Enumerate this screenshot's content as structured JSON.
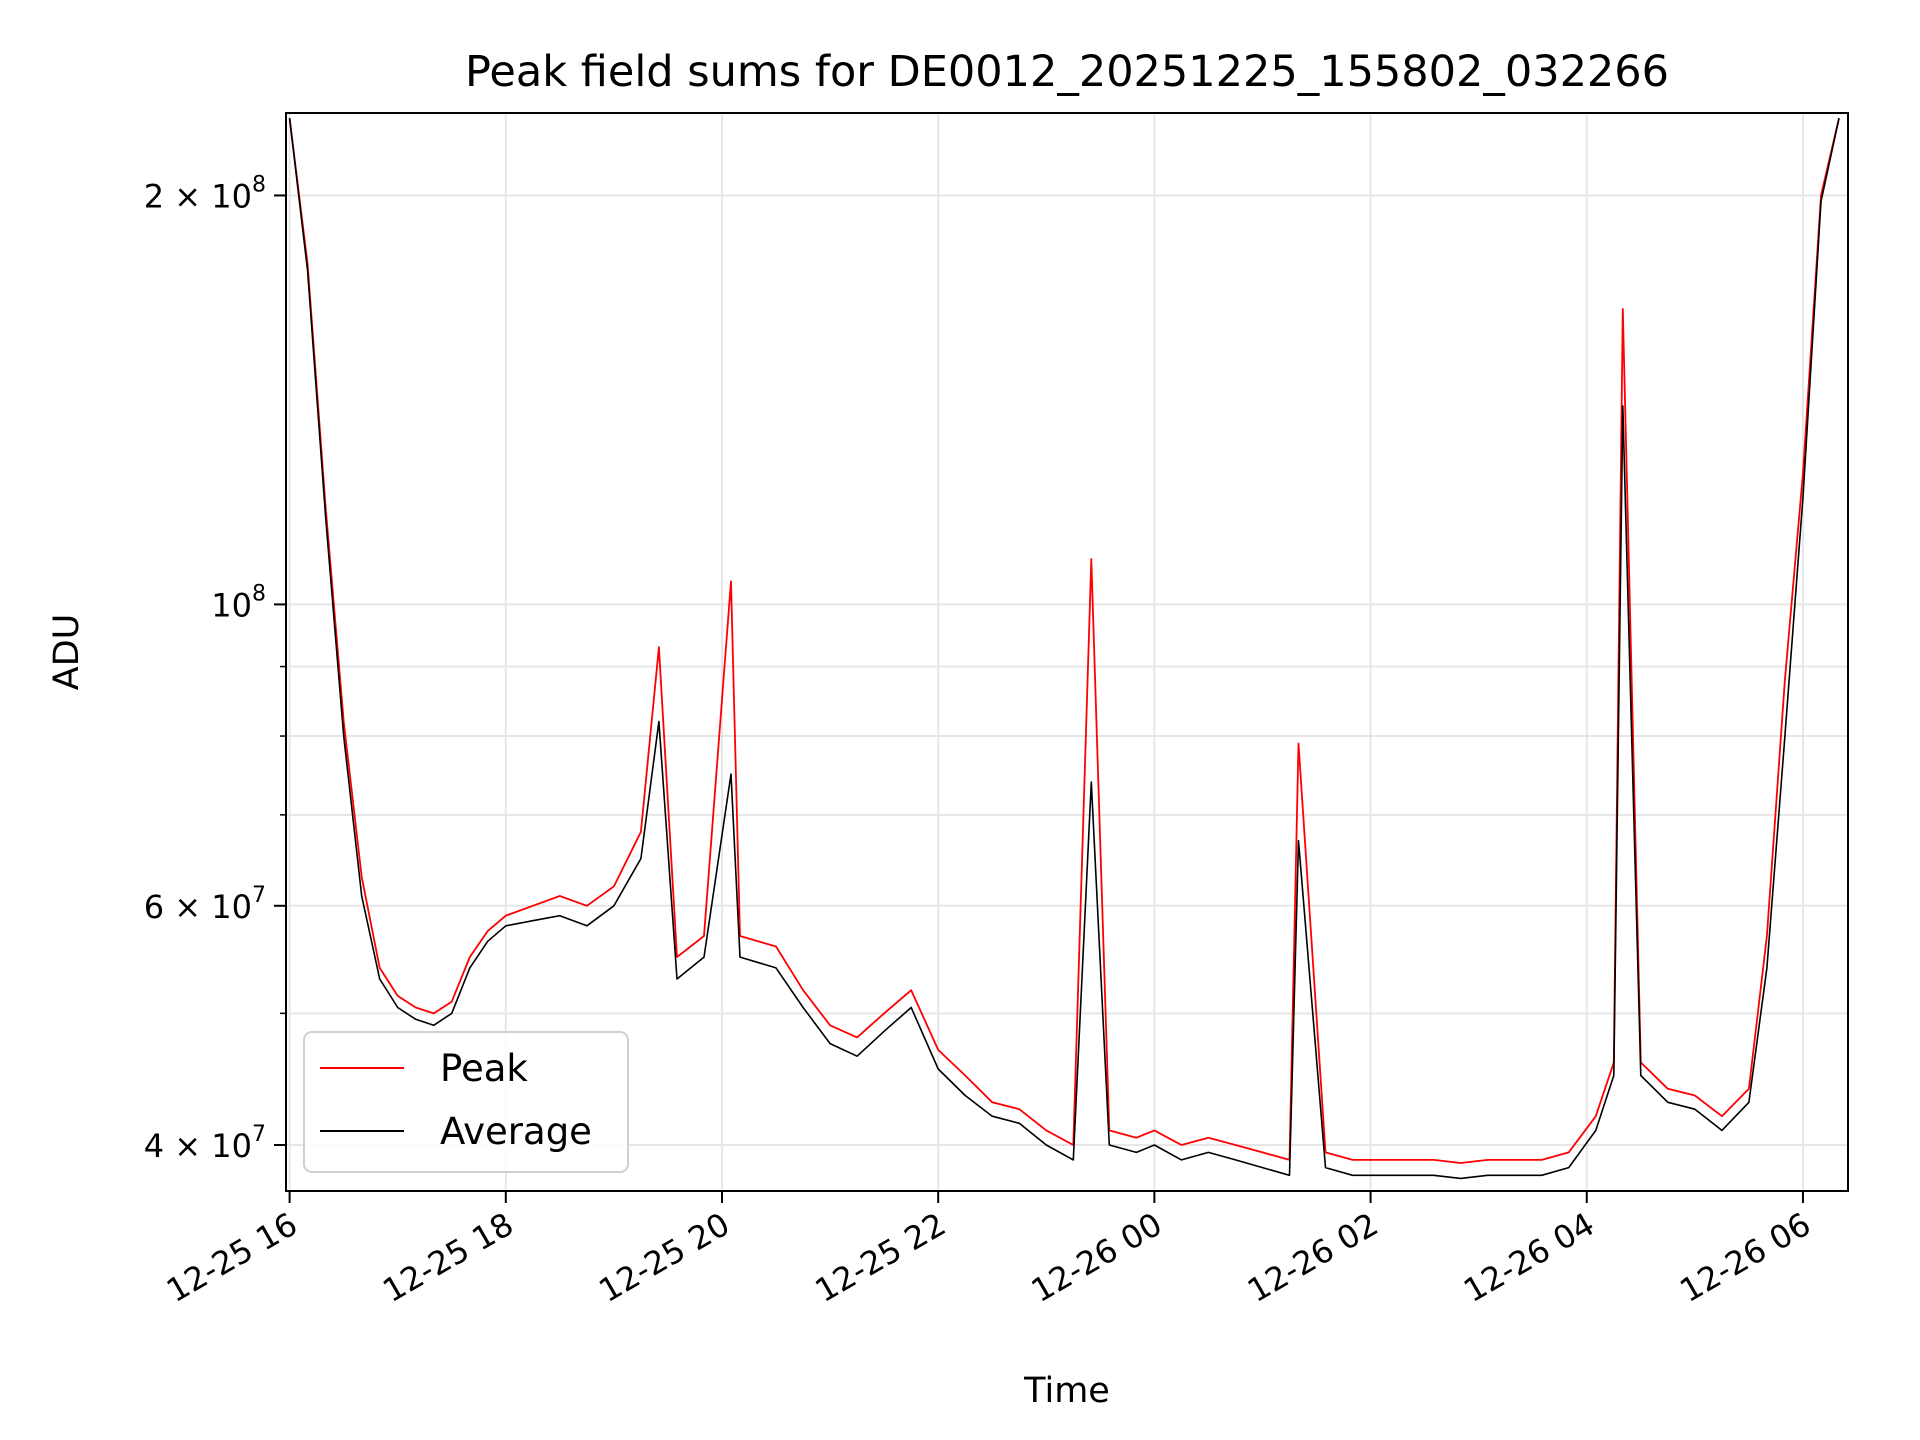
{
  "chart_data": {
    "type": "line",
    "title": "Peak field sums for DE0012_20251225_155802_032266",
    "xlabel": "Time",
    "ylabel": "ADU",
    "yscale": "log",
    "xlim": [
      "2025-12-25 15:58",
      "2025-12-26 06:25"
    ],
    "ylim": [
      37000000,
      230000000
    ],
    "grid": true,
    "legend_position": "lower-left",
    "x_ticks": [
      {
        "value": "2025-12-25 16:00",
        "label": "12-25 16"
      },
      {
        "value": "2025-12-25 18:00",
        "label": "12-25 18"
      },
      {
        "value": "2025-12-25 20:00",
        "label": "12-25 20"
      },
      {
        "value": "2025-12-25 22:00",
        "label": "12-25 22"
      },
      {
        "value": "2025-12-26 00:00",
        "label": "12-26 00"
      },
      {
        "value": "2025-12-26 02:00",
        "label": "12-26 02"
      },
      {
        "value": "2025-12-26 04:00",
        "label": "12-26 04"
      },
      {
        "value": "2025-12-26 06:00",
        "label": "12-26 06"
      }
    ],
    "y_ticks": [
      {
        "value": 40000000,
        "label": "4 × 10",
        "exp": "7"
      },
      {
        "value": 60000000,
        "label": "6 × 10",
        "exp": "7"
      },
      {
        "value": 100000000,
        "label": "10",
        "exp": "8"
      },
      {
        "value": 200000000,
        "label": "2 × 10",
        "exp": "8"
      }
    ],
    "series": [
      {
        "name": "Peak",
        "color": "#ff0000",
        "x": [
          "2025-12-25 16:00",
          "2025-12-25 16:10",
          "2025-12-25 16:20",
          "2025-12-25 16:30",
          "2025-12-25 16:40",
          "2025-12-25 16:50",
          "2025-12-25 17:00",
          "2025-12-25 17:10",
          "2025-12-25 17:20",
          "2025-12-25 17:30",
          "2025-12-25 17:40",
          "2025-12-25 17:50",
          "2025-12-25 18:00",
          "2025-12-25 18:15",
          "2025-12-25 18:30",
          "2025-12-25 18:45",
          "2025-12-25 19:00",
          "2025-12-25 19:15",
          "2025-12-25 19:25",
          "2025-12-25 19:35",
          "2025-12-25 19:50",
          "2025-12-25 20:05",
          "2025-12-25 20:10",
          "2025-12-25 20:30",
          "2025-12-25 20:45",
          "2025-12-25 21:00",
          "2025-12-25 21:15",
          "2025-12-25 21:30",
          "2025-12-25 21:45",
          "2025-12-25 22:00",
          "2025-12-25 22:15",
          "2025-12-25 22:30",
          "2025-12-25 22:45",
          "2025-12-25 23:00",
          "2025-12-25 23:15",
          "2025-12-25 23:25",
          "2025-12-25 23:35",
          "2025-12-25 23:50",
          "2025-12-26 00:00",
          "2025-12-26 00:15",
          "2025-12-26 00:30",
          "2025-12-26 00:45",
          "2025-12-26 01:00",
          "2025-12-26 01:15",
          "2025-12-26 01:20",
          "2025-12-26 01:35",
          "2025-12-26 01:50",
          "2025-12-26 02:05",
          "2025-12-26 02:20",
          "2025-12-26 02:35",
          "2025-12-26 02:50",
          "2025-12-26 03:05",
          "2025-12-26 03:20",
          "2025-12-26 03:35",
          "2025-12-26 03:50",
          "2025-12-26 04:05",
          "2025-12-26 04:15",
          "2025-12-26 04:20",
          "2025-12-26 04:30",
          "2025-12-26 04:45",
          "2025-12-26 05:00",
          "2025-12-26 05:15",
          "2025-12-26 05:30",
          "2025-12-26 05:40",
          "2025-12-26 05:50",
          "2025-12-26 06:00",
          "2025-12-26 06:10",
          "2025-12-26 06:20"
        ],
        "values": [
          228000000,
          178000000,
          118000000,
          82000000,
          63000000,
          54000000,
          51500000,
          50500000,
          50000000,
          51000000,
          55000000,
          57500000,
          59000000,
          60000000,
          61000000,
          60000000,
          62000000,
          68000000,
          93000000,
          55000000,
          57000000,
          104000000,
          57000000,
          56000000,
          52000000,
          49000000,
          48000000,
          50000000,
          52000000,
          47000000,
          45000000,
          43000000,
          42500000,
          41000000,
          40000000,
          108000000,
          41000000,
          40500000,
          41000000,
          40000000,
          40500000,
          40000000,
          39500000,
          39000000,
          79000000,
          39500000,
          39000000,
          39000000,
          39000000,
          39000000,
          38800000,
          39000000,
          39000000,
          39000000,
          39500000,
          42000000,
          46000000,
          165000000,
          46000000,
          44000000,
          43500000,
          42000000,
          44000000,
          57000000,
          88000000,
          125000000,
          200000000,
          228000000
        ]
      },
      {
        "name": "Average",
        "color": "#000000",
        "x": [
          "2025-12-25 16:00",
          "2025-12-25 16:10",
          "2025-12-25 16:20",
          "2025-12-25 16:30",
          "2025-12-25 16:40",
          "2025-12-25 16:50",
          "2025-12-25 17:00",
          "2025-12-25 17:10",
          "2025-12-25 17:20",
          "2025-12-25 17:30",
          "2025-12-25 17:40",
          "2025-12-25 17:50",
          "2025-12-25 18:00",
          "2025-12-25 18:15",
          "2025-12-25 18:30",
          "2025-12-25 18:45",
          "2025-12-25 19:00",
          "2025-12-25 19:15",
          "2025-12-25 19:25",
          "2025-12-25 19:35",
          "2025-12-25 19:50",
          "2025-12-25 20:05",
          "2025-12-25 20:10",
          "2025-12-25 20:30",
          "2025-12-25 20:45",
          "2025-12-25 21:00",
          "2025-12-25 21:15",
          "2025-12-25 21:30",
          "2025-12-25 21:45",
          "2025-12-25 22:00",
          "2025-12-25 22:15",
          "2025-12-25 22:30",
          "2025-12-25 22:45",
          "2025-12-25 23:00",
          "2025-12-25 23:15",
          "2025-12-25 23:25",
          "2025-12-25 23:35",
          "2025-12-25 23:50",
          "2025-12-26 00:00",
          "2025-12-26 00:15",
          "2025-12-26 00:30",
          "2025-12-26 00:45",
          "2025-12-26 01:00",
          "2025-12-26 01:15",
          "2025-12-26 01:20",
          "2025-12-26 01:35",
          "2025-12-26 01:50",
          "2025-12-26 02:05",
          "2025-12-26 02:20",
          "2025-12-26 02:35",
          "2025-12-26 02:50",
          "2025-12-26 03:05",
          "2025-12-26 03:20",
          "2025-12-26 03:35",
          "2025-12-26 03:50",
          "2025-12-26 04:05",
          "2025-12-26 04:15",
          "2025-12-26 04:20",
          "2025-12-26 04:30",
          "2025-12-26 04:45",
          "2025-12-26 05:00",
          "2025-12-26 05:15",
          "2025-12-26 05:30",
          "2025-12-26 05:40",
          "2025-12-26 05:50",
          "2025-12-26 06:00",
          "2025-12-26 06:10",
          "2025-12-26 06:20"
        ],
        "values": [
          228000000,
          176000000,
          116000000,
          80000000,
          61000000,
          53000000,
          50500000,
          49500000,
          49000000,
          50000000,
          54000000,
          56500000,
          58000000,
          58500000,
          59000000,
          58000000,
          60000000,
          65000000,
          82000000,
          53000000,
          55000000,
          75000000,
          55000000,
          54000000,
          50500000,
          47500000,
          46500000,
          48500000,
          50500000,
          45500000,
          43500000,
          42000000,
          41500000,
          40000000,
          39000000,
          74000000,
          40000000,
          39500000,
          40000000,
          39000000,
          39500000,
          39000000,
          38500000,
          38000000,
          67000000,
          38500000,
          38000000,
          38000000,
          38000000,
          38000000,
          37800000,
          38000000,
          38000000,
          38000000,
          38500000,
          41000000,
          45000000,
          140000000,
          45000000,
          43000000,
          42500000,
          41000000,
          43000000,
          54000000,
          80000000,
          120000000,
          198000000,
          228000000
        ]
      }
    ]
  }
}
